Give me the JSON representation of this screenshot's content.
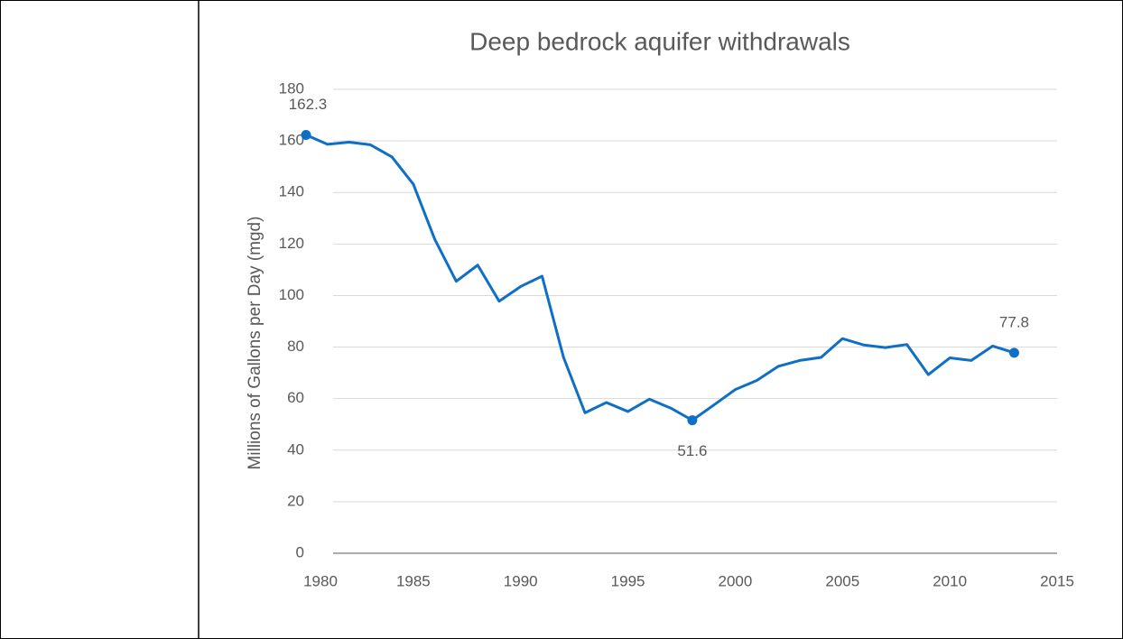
{
  "chart_data": {
    "type": "line",
    "title": "Deep bedrock aquifer withdrawals",
    "y_label": "Millions of Gallons per Day (mgd)",
    "x": [
      1980,
      1981,
      1982,
      1983,
      1984,
      1985,
      1986,
      1987,
      1988,
      1989,
      1990,
      1991,
      1992,
      1993,
      1994,
      1995,
      1996,
      1997,
      1998,
      1999,
      2000,
      2001,
      2002,
      2003,
      2004,
      2005,
      2006,
      2007,
      2008,
      2009,
      2010,
      2011,
      2012,
      2013
    ],
    "series": [
      {
        "name": "Deep bedrock aquifer withdrawals",
        "color": "#0f6fc6",
        "values": [
          162.3,
          158.7,
          159.5,
          158.5,
          153.8,
          143.2,
          121.8,
          105.5,
          111.8,
          97.8,
          103.5,
          107.5,
          76,
          54.5,
          58.5,
          55,
          59.8,
          56.3,
          51.6,
          57.5,
          63.5,
          67,
          72.5,
          74.8,
          76,
          83.3,
          80.8,
          79.8,
          81,
          69.3,
          75.8,
          74.8,
          80.4,
          77.8
        ]
      }
    ],
    "labeled_points": [
      0,
      18,
      33
    ],
    "xlim": [
      1980,
      2015
    ],
    "xticks": [
      1980,
      1985,
      1990,
      1995,
      2000,
      2005,
      2010,
      2015
    ],
    "ylim": [
      0,
      180
    ],
    "yticks": [
      0,
      20,
      40,
      60,
      80,
      100,
      120,
      140,
      160,
      180
    ],
    "grid": true
  }
}
